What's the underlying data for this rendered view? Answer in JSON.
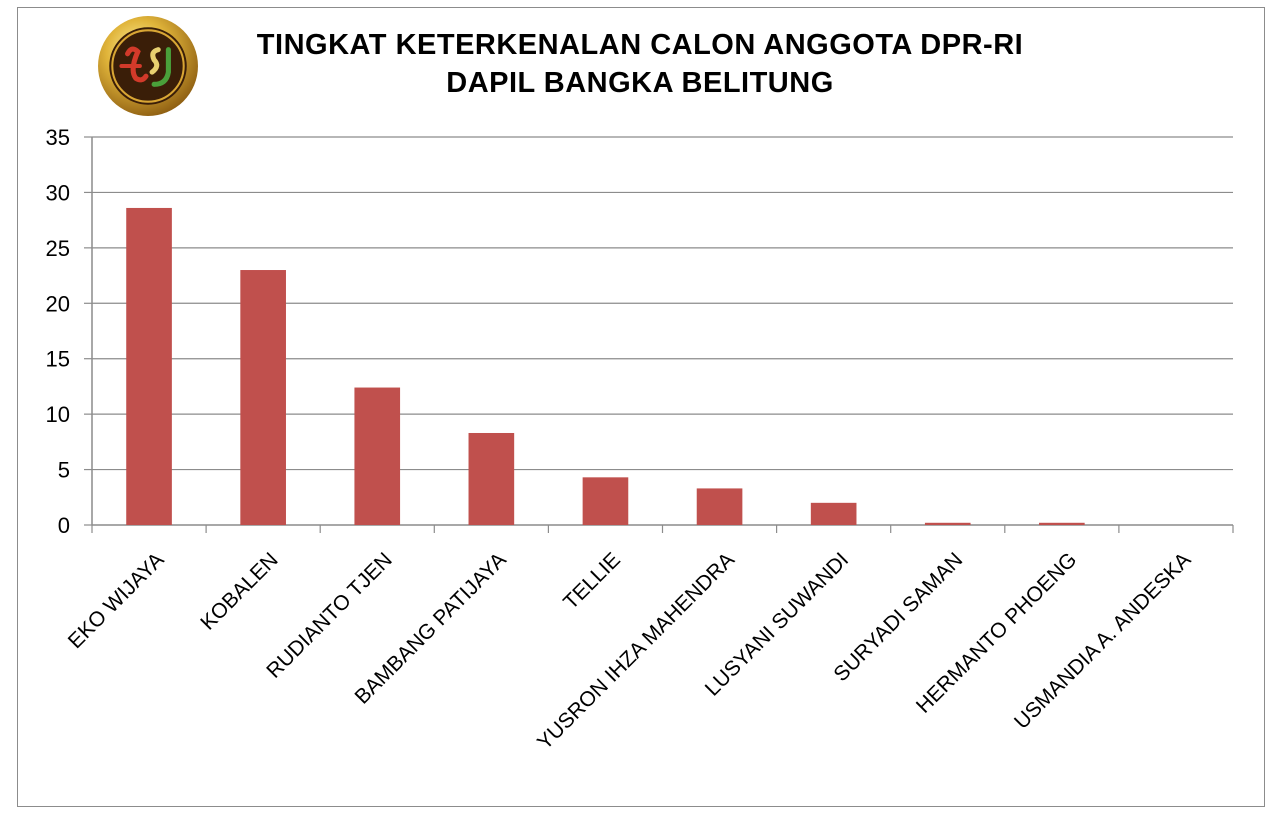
{
  "chart_data": {
    "type": "bar",
    "title": "TINGKAT KETERKENALAN CALON ANGGOTA DPR-RI",
    "subtitle": "DAPIL BANGKA BELITUNG",
    "categories": [
      "EKO WIJAYA",
      "KOBALEN",
      "RUDIANTO TJEN",
      "BAMBANG PATIJAYA",
      "TELLIE",
      "YUSRON IHZA MAHENDRA",
      "LUSYANI SUWANDI",
      "SURYADI SAMAN",
      "HERMANTO PHOENG",
      "USMANDIA A. ANDESKA"
    ],
    "values": [
      28.6,
      23.0,
      12.4,
      8.3,
      4.3,
      3.3,
      2.0,
      0.2,
      0.2,
      0
    ],
    "ylim": [
      0,
      35
    ],
    "yticks": [
      0,
      5,
      10,
      15,
      20,
      25,
      30,
      35
    ],
    "grid": true,
    "legend": "none",
    "bar_color": "#c0504d",
    "grid_color": "#8c8c8c"
  },
  "logo": {
    "icon": "tsj-gold-seal-icon"
  }
}
